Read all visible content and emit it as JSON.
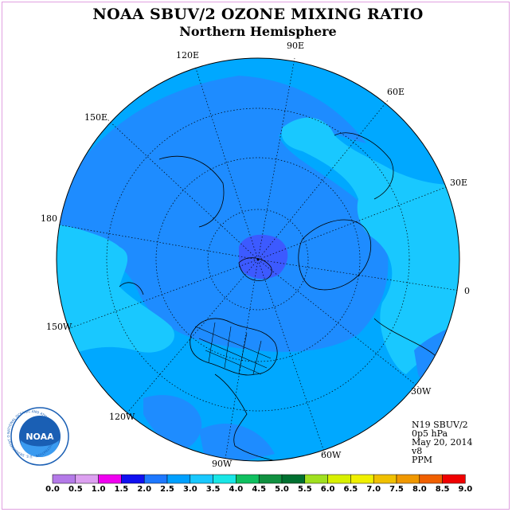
{
  "header": {
    "title": "NOAA SBUV/2 OZONE MIXING RATIO",
    "subtitle": "Northern Hemisphere"
  },
  "map": {
    "projection": "north-polar-stereographic",
    "longitude_labels": {
      "lon_120E": "120E",
      "lon_90E": "90E",
      "lon_60E": "60E",
      "lon_30E": "30E",
      "lon_0": "0",
      "lon_30W": "30W",
      "lon_60W": "60W",
      "lon_90W": "90W",
      "lon_120W": "120W",
      "lon_150W": "150W",
      "lon_180": "180",
      "lon_150E": "150E"
    },
    "field_colors": {
      "level_2_0": "#1e8cff",
      "level_2_5": "#00a8ff",
      "level_3_0": "#19c8ff",
      "pole_low": "#3c5aff"
    }
  },
  "info_block": {
    "satellite": "N19 SBUV/2",
    "pressure": "0p5 hPa",
    "date": "May 20, 2014",
    "version": "v8",
    "units": "PPM"
  },
  "colorbar": {
    "labels": [
      "0.0",
      "0.5",
      "1.0",
      "1.5",
      "2.0",
      "2.5",
      "3.0",
      "3.5",
      "4.0",
      "4.5",
      "5.0",
      "5.5",
      "6.0",
      "6.5",
      "7.0",
      "7.5",
      "8.0",
      "8.5",
      "9.0"
    ],
    "colors": [
      "#b47ae8",
      "#dca0f0",
      "#f000f0",
      "#1010f0",
      "#1e78ff",
      "#00a0ff",
      "#19c8ff",
      "#19e6e6",
      "#10c060",
      "#109040",
      "#007030",
      "#a0e020",
      "#d8f000",
      "#f0f000",
      "#f0c000",
      "#f09800",
      "#f06000",
      "#f00000",
      "#a05a28"
    ]
  },
  "logo": {
    "text": "NOAA",
    "ring_text": "NATIONAL OCEANIC AND ATMOSPHERIC ADMINISTRATION · U.S. DEPARTMENT OF COMMERCE"
  }
}
